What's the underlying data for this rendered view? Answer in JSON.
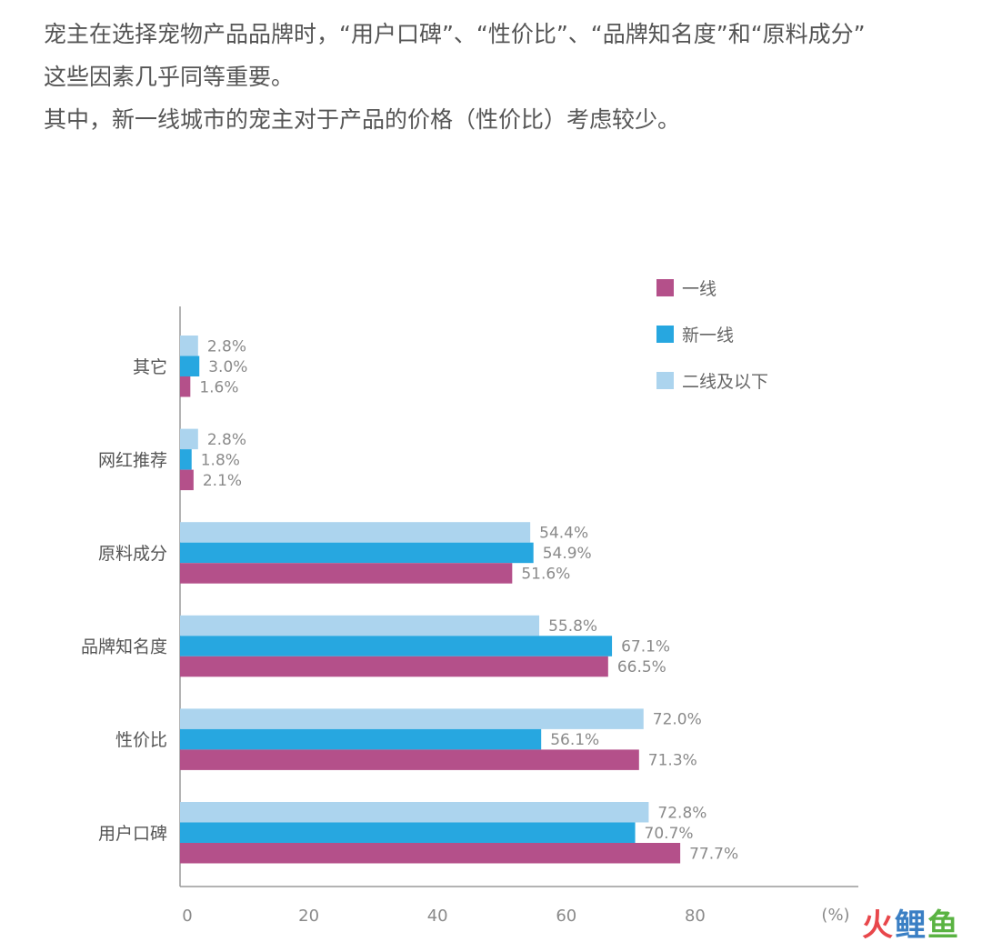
{
  "intro": {
    "line1": "宠主在选择宠物产品品牌时，“用户口碑”、“性价比”、“品牌知名度”和“原料成分”",
    "line2": "这些因素几乎同等重要。",
    "line3": "其中，新一线城市的宠主对于产品的价格（性价比）考虑较少。"
  },
  "chart_data": {
    "type": "bar",
    "orientation": "horizontal",
    "categories": [
      "其它",
      "网红推荐",
      "原料成分",
      "品牌知名度",
      "性价比",
      "用户口碑"
    ],
    "series": [
      {
        "name": "二线及以下",
        "color": "#acd4ee",
        "values": [
          2.8,
          2.8,
          54.4,
          55.8,
          72.0,
          72.8
        ],
        "labels": [
          "2.8%",
          "2.8%",
          "54.4%",
          "55.8%",
          "72.0%",
          "72.8%"
        ]
      },
      {
        "name": "新一线",
        "color": "#27a7e0",
        "values": [
          3.0,
          1.8,
          54.9,
          67.1,
          56.1,
          70.7
        ],
        "labels": [
          "3.0%",
          "1.8%",
          "54.9%",
          "67.1%",
          "56.1%",
          "70.7%"
        ]
      },
      {
        "name": "一线",
        "color": "#b4508a",
        "values": [
          1.6,
          2.1,
          51.6,
          66.5,
          71.3,
          77.7
        ],
        "labels": [
          "1.6%",
          "2.1%",
          "51.6%",
          "66.5%",
          "71.3%",
          "77.7%"
        ]
      }
    ],
    "legend_order": [
      "一线",
      "新一线",
      "二线及以下"
    ],
    "legend_position": "top-right",
    "xticks": [
      "0",
      "20",
      "40",
      "60",
      "80"
    ],
    "xunit": "(%)",
    "xlim": [
      0,
      100
    ],
    "grid": false
  },
  "watermark": {
    "char1": "火",
    "char2": "鲤",
    "char3": "鱼",
    "color1": "#e8474b",
    "color2": "#3a7fc4",
    "color3": "#5ab342"
  }
}
